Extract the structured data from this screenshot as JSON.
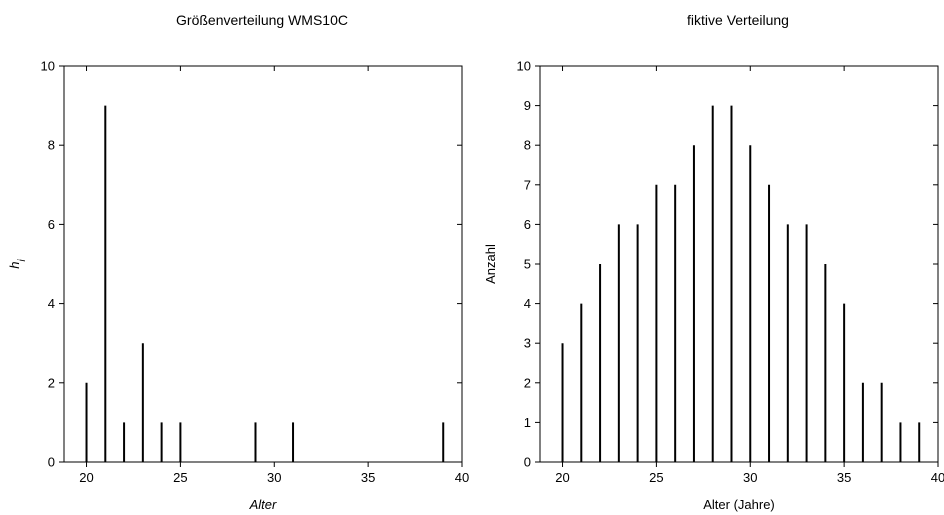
{
  "chart_data": [
    {
      "type": "bar",
      "title": "Größenverteilung WMS10C",
      "xlabel": "Alter",
      "ylabel": "h",
      "ylabel_subscript": "i",
      "xlim": [
        18.8,
        40
      ],
      "ylim": [
        0,
        10
      ],
      "xticks": [
        "20",
        "25",
        "30",
        "35",
        "40"
      ],
      "yticks": [
        "0",
        "2",
        "4",
        "6",
        "8",
        "10"
      ],
      "x": [
        20,
        21,
        22,
        23,
        24,
        25,
        29,
        31,
        39
      ],
      "values": [
        2,
        9,
        1,
        3,
        1,
        1,
        1,
        1,
        1
      ]
    },
    {
      "type": "bar",
      "title": "fiktive Verteilung",
      "xlabel": "Alter (Jahre)",
      "ylabel": "Anzahl",
      "xlim": [
        18.8,
        40
      ],
      "ylim": [
        0,
        10
      ],
      "xticks": [
        "20",
        "25",
        "30",
        "35",
        "40"
      ],
      "yticks": [
        "0",
        "1",
        "2",
        "3",
        "4",
        "5",
        "6",
        "7",
        "8",
        "9",
        "10"
      ],
      "x": [
        20,
        21,
        22,
        23,
        24,
        25,
        26,
        27,
        28,
        29,
        30,
        31,
        32,
        33,
        34,
        35,
        36,
        37,
        38,
        39
      ],
      "values": [
        3,
        4,
        5,
        6,
        6,
        7,
        7,
        8,
        9,
        9,
        8,
        7,
        6,
        6,
        5,
        4,
        2,
        2,
        1,
        1
      ]
    }
  ]
}
